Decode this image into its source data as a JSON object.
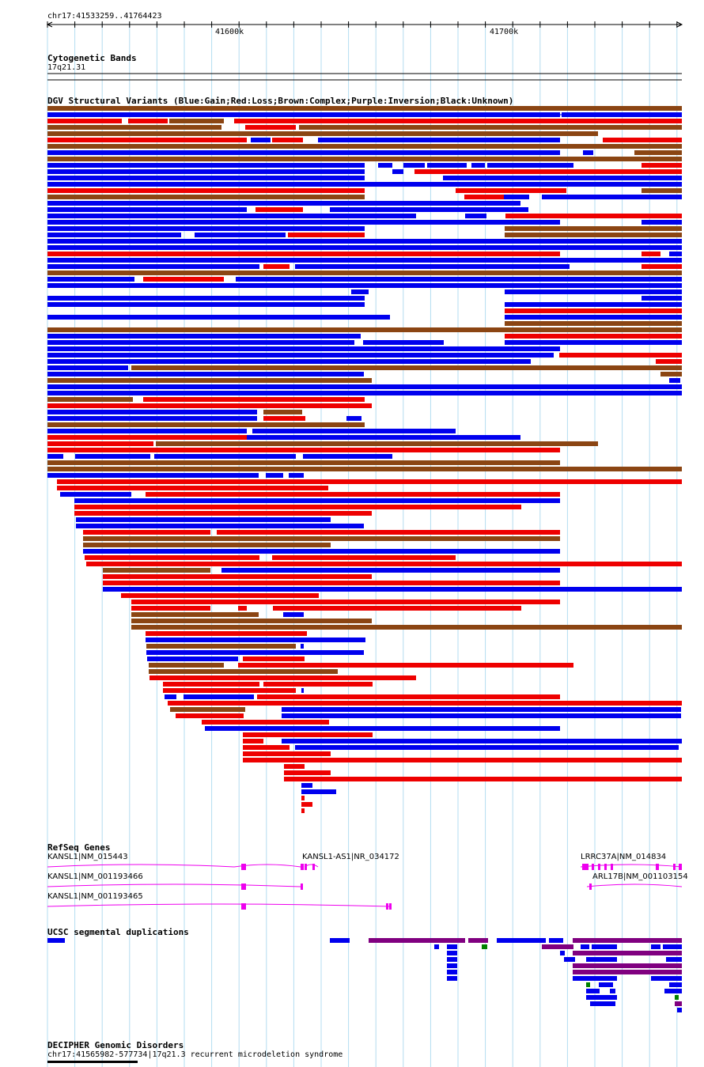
{
  "locus": "chr17:41533259..41764423",
  "ruler": {
    "ticks": [
      "41600k",
      "41700k"
    ]
  },
  "tracks": {
    "cytoband": {
      "title": "Cytogenetic Bands",
      "band": "17q21.31"
    },
    "dgv": {
      "title": "DGV Structural Variants (Blue:Gain;Red:Loss;Brown:Complex;Purple:Inversion;Black:Unknown)"
    },
    "refseq": {
      "title": "RefSeq Genes"
    },
    "segdup": {
      "title": "UCSC segmental duplications"
    },
    "decipher": {
      "title": "DECIPHER Genomic Disorders",
      "feature": "chr17:41565982-577734|17q21.3 recurrent microdeletion syndrome"
    }
  },
  "genes": [
    {
      "label": "KANSL1|NM_015443"
    },
    {
      "label": "KANSL1-AS1|NR_034172"
    },
    {
      "label": "LRRC37A|NM_014834"
    },
    {
      "label": "KANSL1|NM_001193466"
    },
    {
      "label": "ARL17B|NM_001103154"
    },
    {
      "label": "KANSL1|NM_001193465"
    }
  ],
  "colors": {
    "gain": "#0000ee",
    "loss": "#ee0000",
    "complex": "#8b4513",
    "gene": "#ee00ee",
    "segdup_purple": "#800080",
    "segdup_green": "#008000",
    "grid": "#b3dcf0"
  }
}
